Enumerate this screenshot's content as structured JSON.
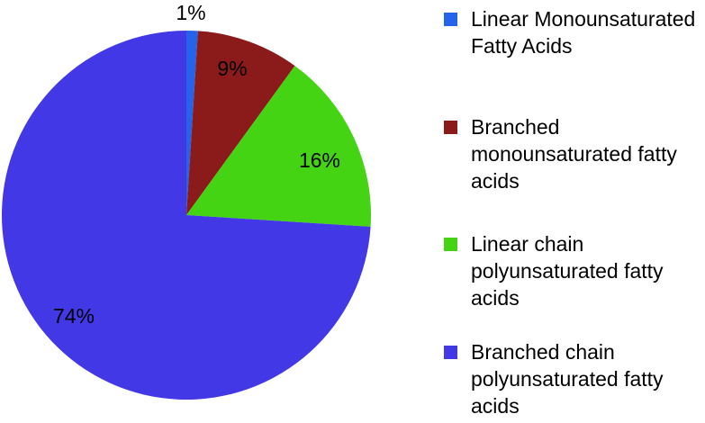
{
  "chart_data": {
    "type": "pie",
    "start_angle_deg": 0,
    "direction": "clockwise",
    "slices": [
      {
        "label": "Linear Monounsaturated Fatty Acids",
        "value": 1,
        "display": "1%",
        "color": "#2563eb"
      },
      {
        "label": "Branched monounsaturated fatty acids",
        "value": 9,
        "display": "9%",
        "color": "#8b1a1a"
      },
      {
        "label": "Linear chain polyunsaturated fatty acids",
        "value": 16,
        "display": "16%",
        "color": "#44d414"
      },
      {
        "label": "Branched chain polyunsaturated fatty acids",
        "value": 74,
        "display": "74%",
        "color": "#4338e6"
      }
    ],
    "legend_position": "right"
  }
}
